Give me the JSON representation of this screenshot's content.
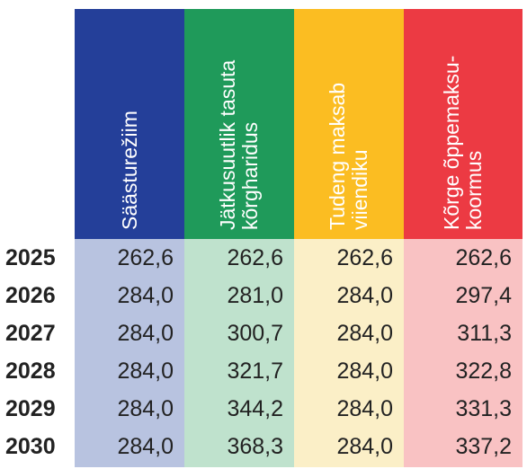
{
  "chart_data": {
    "type": "table",
    "years": [
      "2025",
      "2026",
      "2027",
      "2028",
      "2029",
      "2030"
    ],
    "columns": [
      {
        "name": "Säästurežiim",
        "header_lines": [
          "Säästurežiim"
        ],
        "header_color": "#243f99",
        "body_color": "#b8c3e0",
        "values": [
          "262,6",
          "284,0",
          "284,0",
          "284,0",
          "284,0",
          "284,0"
        ]
      },
      {
        "name": "Jätkusuutlik tasuta kõrgharidus",
        "header_lines": [
          "Jätkusuutlik tasuta",
          "kõrgharidus"
        ],
        "header_color": "#1f9a5a",
        "body_color": "#bfe2cd",
        "values": [
          "262,6",
          "281,0",
          "300,7",
          "321,7",
          "344,2",
          "368,3"
        ]
      },
      {
        "name": "Tudeng maksab viiendiku",
        "header_lines": [
          "Tudeng maksab",
          "viiendiku"
        ],
        "header_color": "#fbbd22",
        "body_color": "#fbefc7",
        "values": [
          "262,6",
          "284,0",
          "284,0",
          "284,0",
          "284,0",
          "284,0"
        ]
      },
      {
        "name": "Kõrge õppemaksukoormus",
        "header_lines": [
          "Kõrge õppemaksu-",
          "koormus"
        ],
        "header_color": "#ec3a43",
        "body_color": "#f9c2c3",
        "values": [
          "262,6",
          "297,4",
          "311,3",
          "322,8",
          "331,3",
          "337,2"
        ]
      }
    ]
  }
}
